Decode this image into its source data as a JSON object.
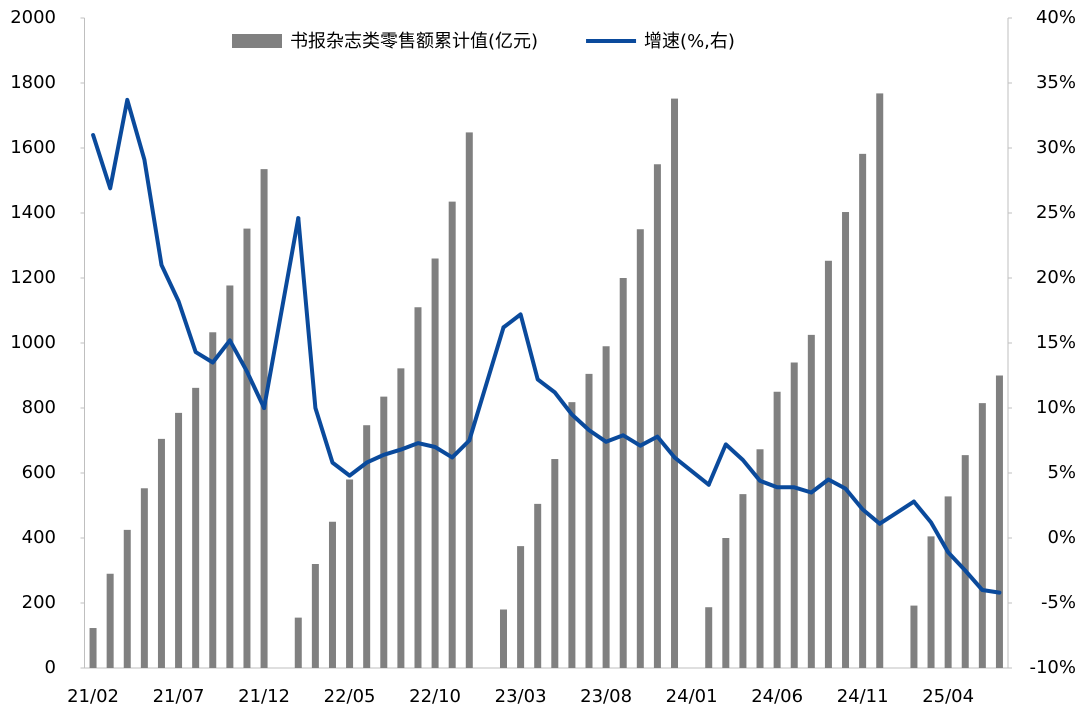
{
  "chart_data": {
    "type": "bar-line",
    "categories": [
      "21/02",
      null,
      null,
      null,
      null,
      "21/07",
      null,
      null,
      null,
      null,
      "21/12",
      null,
      null,
      null,
      null,
      "22/05",
      null,
      null,
      null,
      null,
      "22/10",
      null,
      null,
      null,
      null,
      "23/03",
      null,
      null,
      null,
      null,
      "23/08",
      null,
      null,
      null,
      null,
      "24/01",
      null,
      null,
      null,
      null,
      "24/06",
      null,
      null,
      null,
      null,
      "24/11",
      null,
      null,
      null,
      null,
      "25/04",
      null,
      null,
      null
    ],
    "series": [
      {
        "name": "书报杂志类零售额累计值(亿元)",
        "type": "bar",
        "color": "#808080",
        "values": [
          123,
          290,
          425,
          553,
          705,
          785,
          862,
          1033,
          1177,
          1352,
          1535,
          null,
          155,
          320,
          450,
          580,
          747,
          835,
          922,
          1110,
          1260,
          1435,
          1648,
          null,
          180,
          375,
          505,
          643,
          818,
          905,
          990,
          1200,
          1350,
          1550,
          1752,
          null,
          187,
          400,
          535,
          673,
          850,
          940,
          1025,
          1253,
          1403,
          1582,
          1768,
          null,
          192,
          405,
          528,
          655,
          815,
          900
        ]
      },
      {
        "name": "增速(%,右)",
        "type": "line",
        "axis": "y2",
        "color": "#0a4a9c",
        "values": [
          31.0,
          26.9,
          33.7,
          29.1,
          21.0,
          18.2,
          14.3,
          13.5,
          15.2,
          12.8,
          10.0,
          null,
          24.6,
          10.0,
          5.8,
          4.8,
          5.8,
          6.4,
          6.8,
          7.3,
          7.0,
          6.2,
          7.5,
          null,
          16.2,
          17.2,
          12.2,
          11.2,
          9.5,
          8.3,
          7.4,
          7.9,
          7.1,
          7.8,
          6.2,
          null,
          4.1,
          7.2,
          6.0,
          4.4,
          3.9,
          3.9,
          3.5,
          4.5,
          3.8,
          2.2,
          1.1,
          null,
          2.8,
          1.2,
          -1.1,
          -2.5,
          -4.0,
          -4.2
        ]
      }
    ],
    "connect_gaps": true,
    "ylim": [
      0,
      2000
    ],
    "yticks": [
      0,
      200,
      400,
      600,
      800,
      1000,
      1200,
      1400,
      1600,
      1800,
      2000
    ],
    "y2lim": [
      -10,
      40
    ],
    "y2ticks": [
      {
        "value": -10,
        "label": "-10%"
      },
      {
        "value": -5,
        "label": "-5%"
      },
      {
        "value": 0,
        "label": "0%"
      },
      {
        "value": 5,
        "label": "5%"
      },
      {
        "value": 10,
        "label": "10%"
      },
      {
        "value": 15,
        "label": "15%"
      },
      {
        "value": 20,
        "label": "20%"
      },
      {
        "value": 25,
        "label": "25%"
      },
      {
        "value": 30,
        "label": "30%"
      },
      {
        "value": 35,
        "label": "35%"
      },
      {
        "value": 40,
        "label": "40%"
      }
    ],
    "legend": "top"
  }
}
